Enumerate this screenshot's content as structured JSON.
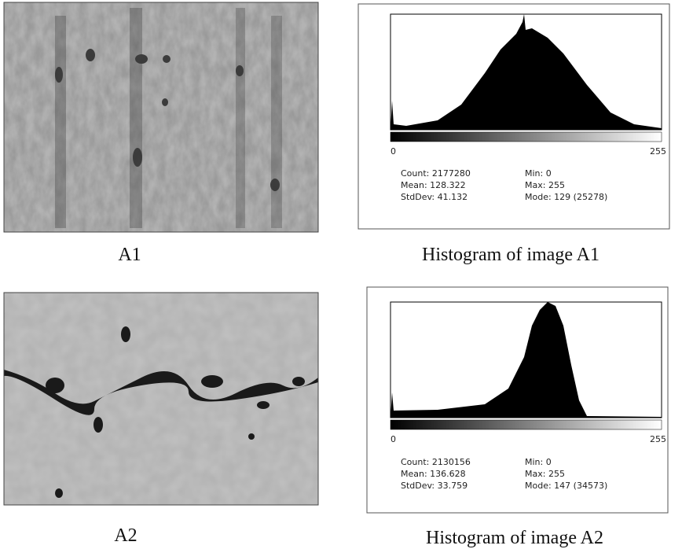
{
  "figures": [
    {
      "image_label": "A1",
      "histogram": {
        "caption": "Histogram of image A1",
        "x_min": "0",
        "x_max": "255",
        "stats": [
          "Count: 2177280",
          "Mean: 128.322",
          "StdDev: 41.132",
          "Min: 0",
          "Max: 255",
          "Mode: 129 (25278)"
        ]
      }
    },
    {
      "image_label": "A2",
      "histogram": {
        "caption": "Histogram of image A2",
        "x_min": "0",
        "x_max": "255",
        "stats": [
          "Count: 2130156",
          "Mean: 136.628",
          "StdDev: 33.759",
          "Min: 0",
          "Max: 255",
          "Mode: 147 (34573)"
        ]
      }
    }
  ]
}
